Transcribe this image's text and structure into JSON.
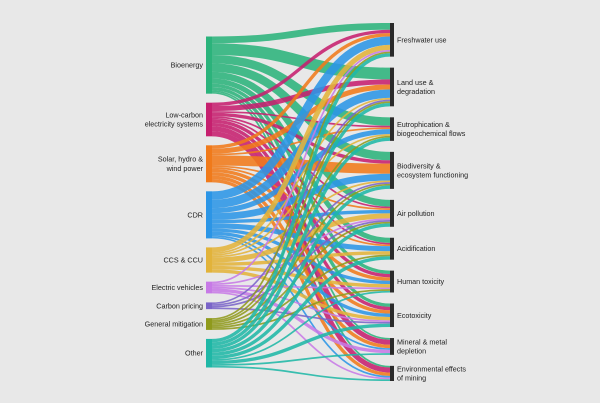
{
  "colors": {
    "background": "#e8e8e8",
    "node": "#2a2a2a",
    "bioenergy": "#2bb37b",
    "low_carbon": "#c61f6e",
    "solar": "#f07a1a",
    "cdr": "#2b95e6",
    "ccs": "#e2b33a",
    "ev": "#c77ae6",
    "pricing": "#7a64c8",
    "general": "#8f9a1c",
    "other": "#1fb7a6"
  },
  "sources": [
    {
      "id": "bioenergy",
      "label_lines": [
        "Bioenergy"
      ],
      "color": "#2bb37b"
    },
    {
      "id": "low_carbon",
      "label_lines": [
        "Low-carbon",
        "electricity systems"
      ],
      "color": "#c61f6e"
    },
    {
      "id": "solar",
      "label_lines": [
        "Solar, hydro &",
        "wind power"
      ],
      "color": "#f07a1a"
    },
    {
      "id": "cdr",
      "label_lines": [
        "CDR"
      ],
      "color": "#2b95e6"
    },
    {
      "id": "ccs",
      "label_lines": [
        "CCS & CCU"
      ],
      "color": "#e2b33a"
    },
    {
      "id": "ev",
      "label_lines": [
        "Electric vehicles"
      ],
      "color": "#c77ae6"
    },
    {
      "id": "pricing",
      "label_lines": [
        "Carbon pricing"
      ],
      "color": "#7a64c8"
    },
    {
      "id": "general",
      "label_lines": [
        "General mitigation"
      ],
      "color": "#8f9a1c"
    },
    {
      "id": "other",
      "label_lines": [
        "Other"
      ],
      "color": "#1fb7a6"
    }
  ],
  "targets": [
    {
      "id": "freshwater",
      "label_lines": [
        "Freshwater use"
      ]
    },
    {
      "id": "land",
      "label_lines": [
        "Land use &",
        "degradation"
      ]
    },
    {
      "id": "eutro",
      "label_lines": [
        "Eutrophication &",
        "biogeochemical flows"
      ]
    },
    {
      "id": "biodiv",
      "label_lines": [
        "Biodiversity &",
        "ecosystem functioning"
      ]
    },
    {
      "id": "air",
      "label_lines": [
        "Air pollution"
      ]
    },
    {
      "id": "acid",
      "label_lines": [
        "Acidification"
      ]
    },
    {
      "id": "humantox",
      "label_lines": [
        "Human toxicity"
      ]
    },
    {
      "id": "ecotox",
      "label_lines": [
        "Ecotoxicity"
      ]
    },
    {
      "id": "mineral",
      "label_lines": [
        "Mineral & metal",
        "depletion"
      ]
    },
    {
      "id": "envmining",
      "label_lines": [
        "Environmental effects",
        "of mining"
      ]
    }
  ],
  "links": [
    [
      "bioenergy",
      "freshwater",
      4
    ],
    [
      "bioenergy",
      "land",
      7
    ],
    [
      "bioenergy",
      "eutro",
      5
    ],
    [
      "bioenergy",
      "biodiv",
      5
    ],
    [
      "bioenergy",
      "air",
      4
    ],
    [
      "bioenergy",
      "acid",
      3
    ],
    [
      "bioenergy",
      "humantox",
      2
    ],
    [
      "bioenergy",
      "ecotox",
      2
    ],
    [
      "bioenergy",
      "mineral",
      1
    ],
    [
      "bioenergy",
      "envmining",
      1
    ],
    [
      "low_carbon",
      "freshwater",
      2
    ],
    [
      "low_carbon",
      "land",
      3
    ],
    [
      "low_carbon",
      "eutro",
      1
    ],
    [
      "low_carbon",
      "biodiv",
      2
    ],
    [
      "low_carbon",
      "air",
      1
    ],
    [
      "low_carbon",
      "acid",
      1
    ],
    [
      "low_carbon",
      "humantox",
      2
    ],
    [
      "low_carbon",
      "ecotox",
      2
    ],
    [
      "low_carbon",
      "mineral",
      3
    ],
    [
      "low_carbon",
      "envmining",
      3
    ],
    [
      "solar",
      "freshwater",
      2
    ],
    [
      "solar",
      "land",
      3
    ],
    [
      "solar",
      "eutro",
      1
    ],
    [
      "solar",
      "biodiv",
      6
    ],
    [
      "solar",
      "air",
      1
    ],
    [
      "solar",
      "acid",
      1
    ],
    [
      "solar",
      "humantox",
      2
    ],
    [
      "solar",
      "ecotox",
      2
    ],
    [
      "solar",
      "mineral",
      2
    ],
    [
      "solar",
      "envmining",
      2
    ],
    [
      "cdr",
      "freshwater",
      5
    ],
    [
      "cdr",
      "land",
      5
    ],
    [
      "cdr",
      "eutro",
      3
    ],
    [
      "cdr",
      "biodiv",
      4
    ],
    [
      "cdr",
      "air",
      2
    ],
    [
      "cdr",
      "acid",
      3
    ],
    [
      "cdr",
      "humantox",
      2
    ],
    [
      "cdr",
      "ecotox",
      2
    ],
    [
      "cdr",
      "mineral",
      1
    ],
    [
      "cdr",
      "envmining",
      1
    ],
    [
      "ccs",
      "freshwater",
      3
    ],
    [
      "ccs",
      "land",
      1
    ],
    [
      "ccs",
      "eutro",
      1
    ],
    [
      "ccs",
      "biodiv",
      1
    ],
    [
      "ccs",
      "air",
      3
    ],
    [
      "ccs",
      "acid",
      2
    ],
    [
      "ccs",
      "humantox",
      2
    ],
    [
      "ccs",
      "ecotox",
      2
    ],
    [
      "ev",
      "freshwater",
      1
    ],
    [
      "ev",
      "air",
      1
    ],
    [
      "ev",
      "humantox",
      1
    ],
    [
      "ev",
      "ecotox",
      1
    ],
    [
      "ev",
      "mineral",
      2
    ],
    [
      "ev",
      "envmining",
      1
    ],
    [
      "pricing",
      "land",
      1
    ],
    [
      "pricing",
      "biodiv",
      1
    ],
    [
      "pricing",
      "air",
      1
    ],
    [
      "pricing",
      "ecotox",
      1
    ],
    [
      "general",
      "freshwater",
      1
    ],
    [
      "general",
      "land",
      1
    ],
    [
      "general",
      "eutro",
      1
    ],
    [
      "general",
      "biodiv",
      1
    ],
    [
      "general",
      "air",
      1
    ],
    [
      "general",
      "acid",
      1
    ],
    [
      "general",
      "humantox",
      1
    ],
    [
      "other",
      "freshwater",
      2
    ],
    [
      "other",
      "land",
      2
    ],
    [
      "other",
      "eutro",
      2
    ],
    [
      "other",
      "biodiv",
      2
    ],
    [
      "other",
      "air",
      2
    ],
    [
      "other",
      "acid",
      2
    ],
    [
      "other",
      "humantox",
      1
    ],
    [
      "other",
      "ecotox",
      2
    ],
    [
      "other",
      "mineral",
      1
    ],
    [
      "other",
      "envmining",
      1
    ]
  ]
}
